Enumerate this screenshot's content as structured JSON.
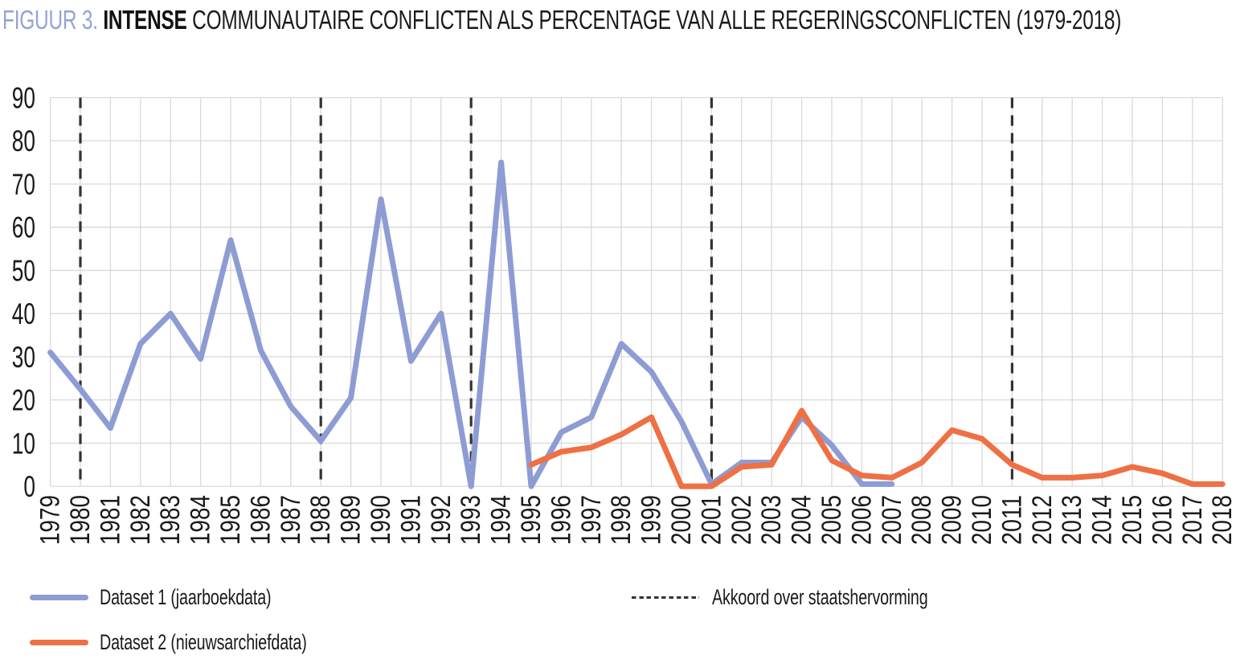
{
  "title": {
    "prefix": "FIGUUR 3.",
    "emphasis": "INTENSE",
    "rest": "COMMUNAUTAIRE CONFLICTEN ALS PERCENTAGE VAN ALLE REGERINGSCONFLICTEN (1979-2018)"
  },
  "colors": {
    "title_accent": "#95a2d7",
    "dataset1": "#8e9cd4",
    "dataset2": "#ee7044",
    "gridline": "#d9d9d9",
    "annotation": "#333333",
    "text": "#1a1a1a"
  },
  "chart_data": {
    "type": "line",
    "title": "FIGUUR 3. INTENSE COMMUNAUTAIRE CONFLICTEN ALS PERCENTAGE VAN ALLE REGERINGSCONFLICTEN (1979-2018)",
    "xlabel": "",
    "ylabel": "",
    "ylim": [
      0,
      90
    ],
    "y_ticks": [
      0,
      10,
      20,
      30,
      40,
      50,
      60,
      70,
      80,
      90
    ],
    "grid": true,
    "legend_position": "bottom",
    "x_years": [
      1979,
      1980,
      1981,
      1982,
      1983,
      1984,
      1985,
      1986,
      1987,
      1988,
      1989,
      1990,
      1991,
      1992,
      1993,
      1994,
      1995,
      1996,
      1997,
      1998,
      1999,
      2000,
      2001,
      2002,
      2003,
      2004,
      2005,
      2006,
      2007,
      2008,
      2009,
      2010,
      2011,
      2012,
      2013,
      2014,
      2015,
      2016,
      2017,
      2018
    ],
    "series": [
      {
        "name": "Dataset 1 (jaarboekdata)",
        "color": "#8e9cd4",
        "start_year": 1979,
        "values": [
          31,
          22.5,
          13.5,
          33,
          40,
          29.5,
          57,
          31.5,
          18.5,
          10.5,
          20.5,
          66.5,
          29,
          40,
          0,
          75,
          0,
          12.5,
          16,
          33,
          26.5,
          15,
          0.5,
          5.5,
          5.5,
          16,
          9.5,
          0.5,
          0.5
        ]
      },
      {
        "name": "Dataset 2 (nieuwsarchiefdata)",
        "color": "#ee7044",
        "start_year": 1995,
        "values": [
          5,
          8,
          9,
          12,
          16,
          0,
          0,
          4.5,
          5,
          17.5,
          6,
          2.5,
          2,
          5.5,
          13,
          11,
          5,
          2,
          2,
          2.5,
          4.5,
          3,
          0.5,
          0.5
        ]
      }
    ],
    "annotations": {
      "vlines_label": "Akkoord over staatshervorming",
      "vline_years": [
        1980,
        1988,
        1993,
        2001,
        2011
      ],
      "style": "dashed",
      "color": "#333333"
    }
  },
  "legend": {
    "items": [
      {
        "label": "Dataset 1 (jaarboekdata)",
        "swatch": "blue-line"
      },
      {
        "label": "Dataset 2 (nieuwsarchiefdata)",
        "swatch": "orange-line"
      },
      {
        "label": "Akkoord over staatshervorming",
        "swatch": "dashed-black-line"
      }
    ]
  }
}
